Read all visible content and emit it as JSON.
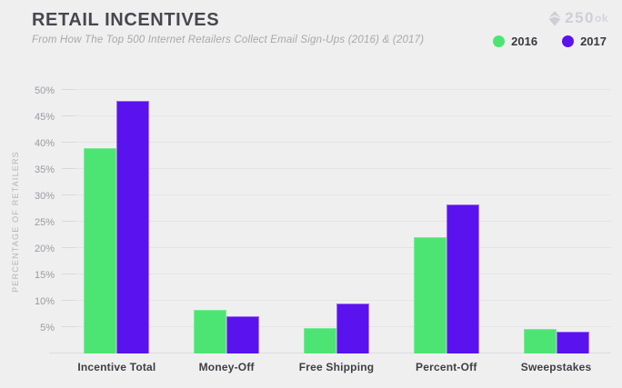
{
  "header": {
    "title": "RETAIL INCENTIVES",
    "subtitle": "From How The Top 500 Internet Retailers Collect Email Sign-Ups (2016) & (2017)",
    "brand": {
      "number": "250",
      "suffix": "ok"
    }
  },
  "chart_data": {
    "type": "bar",
    "title": "RETAIL INCENTIVES",
    "subtitle": "From How The Top 500 Internet Retailers Collect Email Sign-Ups (2016) & (2017)",
    "categories": [
      "Incentive Total",
      "Money-Off",
      "Free Shipping",
      "Percent-Off",
      "Sweepstakes"
    ],
    "series": [
      {
        "name": "2016",
        "color": "#4ce573",
        "border_color": "#7ceb97",
        "values": [
          39,
          8.2,
          4.8,
          22,
          4.7
        ]
      },
      {
        "name": "2017",
        "color": "#5a12ee",
        "border_color": "#9e6bf4",
        "values": [
          48,
          7.1,
          9.5,
          28.2,
          4.1
        ]
      }
    ],
    "xlabel": "",
    "ylabel": "PERCENTAGE OF RETAILERS",
    "ylim": [
      0,
      50
    ],
    "yticks": [
      5,
      10,
      15,
      20,
      25,
      30,
      35,
      40,
      45,
      50
    ],
    "ytick_suffix": "%",
    "grid": true,
    "legend_position": "top-right",
    "background_color": "#f0eff0"
  }
}
